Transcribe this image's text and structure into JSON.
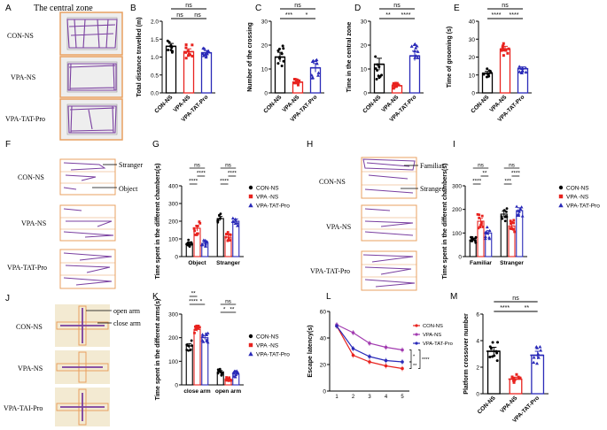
{
  "colors": {
    "con": "#000000",
    "vpa": "#e8231f",
    "tat": "#2a2ab8",
    "track": "#7a3fa0",
    "frame": "#e8a060",
    "photo_bg": "#eeeeee",
    "maze_bg": "#f3ead2"
  },
  "panels": {
    "A": {
      "letter": "A",
      "zone_label": "The central zone",
      "groups": [
        "CON-NS",
        "VPA-NS",
        "VPA-TAT-Pro"
      ]
    },
    "F": {
      "letter": "F",
      "groups": [
        "CON-NS",
        "VPA-NS",
        "VPA-TAT-Pro"
      ],
      "stranger_label": "Stranger",
      "object_label": "Object"
    },
    "H": {
      "letter": "H",
      "groups": [
        "CON-NS",
        "VPA-NS",
        "VPA-TAT-Pro"
      ],
      "familiar_label": "Familiar",
      "stranger_label": "Stranger"
    },
    "J": {
      "letter": "J",
      "groups": [
        "CON-NS",
        "VPA-NS",
        "VPA-TAI-Pro"
      ],
      "open_arm_label": "open arm",
      "close_arm_label": "close arm"
    }
  },
  "chart_data": [
    {
      "id": "B",
      "letter": "B",
      "type": "bar",
      "ylabel": "Total distance travelled (m)",
      "categories": [
        "CON-NS",
        "VPA-NS",
        "VPA-TAT-Pro"
      ],
      "values": [
        1.3,
        1.15,
        1.12
      ],
      "errors": [
        0.08,
        0.08,
        0.06
      ],
      "ylim": [
        0,
        2.0
      ],
      "yticks": [
        "0.0",
        "0.5",
        "1.0",
        "1.5",
        "2.0"
      ],
      "sig": [
        {
          "from": 0,
          "to": 2,
          "label": "ns"
        },
        {
          "from": 0,
          "to": 1,
          "label": "ns"
        },
        {
          "from": 1,
          "to": 2,
          "label": "ns"
        }
      ]
    },
    {
      "id": "C",
      "letter": "C",
      "type": "bar",
      "ylabel": "Number of the crossing",
      "categories": [
        "CON-NS",
        "VPA-NS",
        "VPA-TAT-Pro"
      ],
      "values": [
        15,
        4.5,
        10.5
      ],
      "errors": [
        2.0,
        0.5,
        1.8
      ],
      "ylim": [
        0,
        30
      ],
      "yticks": [
        "0",
        "10",
        "20",
        "30"
      ],
      "sig": [
        {
          "from": 0,
          "to": 2,
          "label": "ns"
        },
        {
          "from": 0,
          "to": 1,
          "label": "***"
        },
        {
          "from": 1,
          "to": 2,
          "label": "*"
        }
      ]
    },
    {
      "id": "D",
      "letter": "D",
      "type": "bar",
      "ylabel": "Time in the central zone",
      "categories": [
        "CON-NS",
        "VPA-NS",
        "VPA-TAT-Pro"
      ],
      "values": [
        12,
        3,
        15.5
      ],
      "errors": [
        2.5,
        0.5,
        2.0
      ],
      "ylim": [
        0,
        30
      ],
      "yticks": [
        "0",
        "10",
        "20",
        "30"
      ],
      "sig": [
        {
          "from": 0,
          "to": 2,
          "label": "ns"
        },
        {
          "from": 0,
          "to": 1,
          "label": "**"
        },
        {
          "from": 1,
          "to": 2,
          "label": "****"
        }
      ]
    },
    {
      "id": "E",
      "letter": "E",
      "type": "bar",
      "ylabel": "Time of grooming (s)",
      "categories": [
        "CON-NS",
        "VPA-NS",
        "VPA-TAT-Pro"
      ],
      "values": [
        11,
        24.5,
        13.5
      ],
      "errors": [
        1.0,
        1.5,
        1.0
      ],
      "ylim": [
        0,
        40
      ],
      "yticks": [
        "0",
        "10",
        "20",
        "30",
        "40"
      ],
      "sig": [
        {
          "from": 0,
          "to": 2,
          "label": "ns"
        },
        {
          "from": 0,
          "to": 1,
          "label": "****"
        },
        {
          "from": 1,
          "to": 2,
          "label": "****"
        }
      ]
    },
    {
      "id": "G",
      "letter": "G",
      "type": "grouped-bar",
      "ylabel": "Time spent in the different chambers(s)",
      "categories": [
        "Object",
        "Stranger"
      ],
      "legend": [
        "CON-NS",
        "VPA -NS",
        "VPA-TAT-Pro"
      ],
      "series": [
        {
          "name": "CON-NS",
          "values": [
            75,
            215
          ],
          "errors": [
            8,
            12
          ]
        },
        {
          "name": "VPA -NS",
          "values": [
            160,
            110
          ],
          "errors": [
            15,
            15
          ]
        },
        {
          "name": "VPA-TAT-Pro",
          "values": [
            75,
            200
          ],
          "errors": [
            8,
            12
          ]
        }
      ],
      "ylim": [
        0,
        400
      ],
      "yticks": [
        "0",
        "100",
        "200",
        "300",
        "400"
      ],
      "sig": [
        {
          "group": 0,
          "from": 0,
          "to": 2,
          "label": "ns",
          "level": 2
        },
        {
          "group": 0,
          "from": 1,
          "to": 2,
          "label": "****",
          "level": 1
        },
        {
          "group": 0,
          "from": 0,
          "to": 1,
          "label": "****",
          "level": 0
        },
        {
          "group": 1,
          "from": 0,
          "to": 2,
          "label": "ns",
          "level": 2
        },
        {
          "group": 1,
          "from": 1,
          "to": 2,
          "label": "****",
          "level": 1
        },
        {
          "group": 1,
          "from": 0,
          "to": 1,
          "label": "****",
          "level": 0
        }
      ]
    },
    {
      "id": "I",
      "letter": "I",
      "type": "grouped-bar",
      "ylabel": "Time spent in the different chambers(s)",
      "categories": [
        "Familiar",
        "Stranger"
      ],
      "legend": [
        "CON-NS",
        "VPA -NS",
        "VPA-TAT-Pro"
      ],
      "series": [
        {
          "name": "CON-NS",
          "values": [
            70,
            180
          ],
          "errors": [
            8,
            12
          ]
        },
        {
          "name": "VPA -NS",
          "values": [
            150,
            130
          ],
          "errors": [
            12,
            10
          ]
        },
        {
          "name": "VPA-TAT-Pro",
          "values": [
            100,
            195
          ],
          "errors": [
            10,
            12
          ]
        }
      ],
      "ylim": [
        0,
        300
      ],
      "yticks": [
        "0",
        "100",
        "200",
        "300"
      ],
      "sig": [
        {
          "group": 0,
          "from": 0,
          "to": 2,
          "label": "ns",
          "level": 2
        },
        {
          "group": 0,
          "from": 1,
          "to": 2,
          "label": "**",
          "level": 1
        },
        {
          "group": 0,
          "from": 0,
          "to": 1,
          "label": "****",
          "level": 0
        },
        {
          "group": 1,
          "from": 0,
          "to": 2,
          "label": "ns",
          "level": 2
        },
        {
          "group": 1,
          "from": 1,
          "to": 2,
          "label": "****",
          "level": 1
        },
        {
          "group": 1,
          "from": 0,
          "to": 1,
          "label": "***",
          "level": 0
        }
      ]
    },
    {
      "id": "K",
      "letter": "K",
      "type": "grouped-bar",
      "ylabel": "Time spent in the different arms(s)",
      "categories": [
        "close arm",
        "open arm"
      ],
      "legend": [
        "CON-NS",
        "VPA -NS",
        "VPA-TAT-Pro"
      ],
      "series": [
        {
          "name": "CON-NS",
          "values": [
            165,
            55
          ],
          "errors": [
            10,
            6
          ]
        },
        {
          "name": "VPA -NS",
          "values": [
            235,
            25
          ],
          "errors": [
            8,
            3
          ]
        },
        {
          "name": "VPA-TAT-Pro",
          "values": [
            200,
            45
          ],
          "errors": [
            8,
            6
          ]
        }
      ],
      "ylim": [
        0,
        300
      ],
      "yticks": [
        "0",
        "100",
        "200",
        "300"
      ],
      "sig": [
        {
          "group": 0,
          "from": 0,
          "to": 1,
          "label": "**",
          "level": 2
        },
        {
          "group": 0,
          "from": 0,
          "to": 1,
          "label": "****",
          "level": 1
        },
        {
          "group": 0,
          "from": 1,
          "to": 2,
          "label": "*",
          "level": 1
        },
        {
          "group": 1,
          "from": 0,
          "to": 2,
          "label": "ns",
          "level": 1
        },
        {
          "group": 1,
          "from": 0,
          "to": 1,
          "label": "*",
          "level": 0
        },
        {
          "group": 1,
          "from": 1,
          "to": 2,
          "label": "**",
          "level": 0
        }
      ]
    },
    {
      "id": "L",
      "letter": "L",
      "type": "line",
      "ylabel": "Escape latency(s)",
      "x": [
        1,
        2,
        3,
        4,
        5
      ],
      "series": [
        {
          "name": "CON-NS",
          "values": [
            49,
            27,
            22,
            19,
            17
          ]
        },
        {
          "name": "VPA-NS",
          "values": [
            50,
            44,
            36,
            33,
            31
          ]
        },
        {
          "name": "VPA-TAT-Pro",
          "values": [
            49,
            32,
            26,
            23,
            22
          ]
        }
      ],
      "ylim": [
        0,
        60
      ],
      "yticks": [
        "0",
        "20",
        "40",
        "60"
      ],
      "sig_labels": [
        "*",
        "**",
        "****"
      ]
    },
    {
      "id": "M",
      "letter": "M",
      "type": "bar",
      "ylabel": "Platform crossover number",
      "categories": [
        "CON-NS",
        "VPA-NS",
        "VPA-TAT-Pro"
      ],
      "values": [
        3.2,
        1.1,
        2.9
      ],
      "errors": [
        0.3,
        0.15,
        0.3
      ],
      "ylim": [
        0,
        6
      ],
      "yticks": [
        "0",
        "2",
        "4",
        "6"
      ],
      "sig": [
        {
          "from": 0,
          "to": 2,
          "label": "ns"
        },
        {
          "from": 0,
          "to": 1,
          "label": "****"
        },
        {
          "from": 1,
          "to": 2,
          "label": "**"
        }
      ]
    }
  ]
}
